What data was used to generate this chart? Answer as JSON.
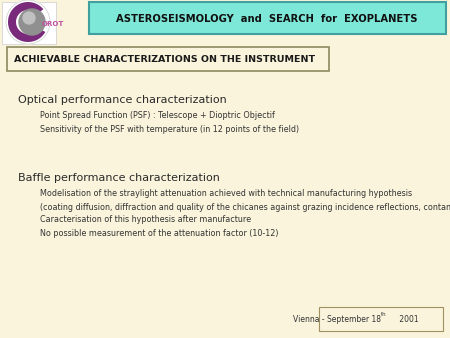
{
  "bg_color": "#faf4dc",
  "title_box_text": "ASTEROSEISMOLOGY  and  SEARCH  for  EXOPLANETS",
  "title_box_bg": "#7de8d8",
  "title_box_border": "#40a0a0",
  "section_box_text": "ACHIEVABLE CHARACTERIZATIONS ON THE INSTRUMENT",
  "section_box_border": "#8a8a60",
  "section_box_bg": "#faf4dc",
  "optical_header": "Optical performance characterization",
  "optical_lines": [
    "Point Spread Function (PSF) : Telescope + Dioptric Objectif",
    "Sensitivity of the PSF with temperature (in 12 points of the field)"
  ],
  "baffle_header": "Baffle performance characterization",
  "baffle_lines": [
    "Modelisation of the straylight attenuation achieved with technical manufacturing hypothesis",
    "(coating diffusion, diffraction and quality of the chicanes against grazing incidence reflections, contamination)",
    "Caracterisation of this hypothesis after manufacture",
    "No possible measurement of the attenuation factor (10-12)"
  ],
  "footer_text": "Vienna - September 18",
  "footer_text2": "th",
  "footer_text3": " 2001",
  "footer_box_border": "#a09060",
  "text_color": "#333333",
  "section_text_color": "#1a1a1a",
  "header_color": "#2a2a2a",
  "logo_purple": "#7a2a7a",
  "logo_gray": "#909090"
}
